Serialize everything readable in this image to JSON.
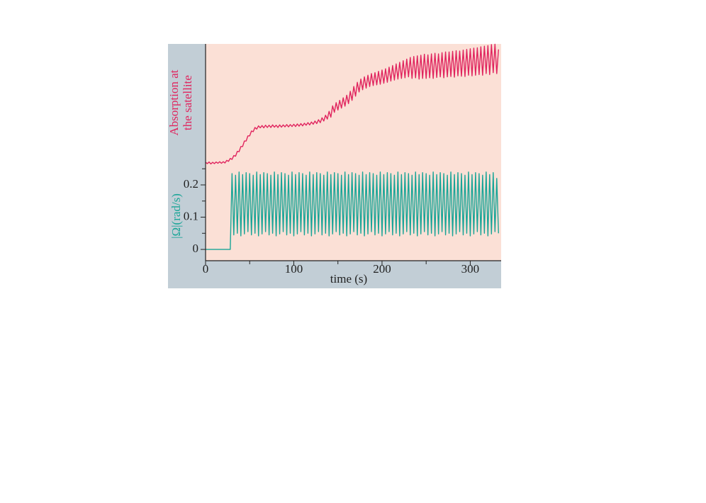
{
  "chart_data": {
    "type": "line",
    "x": [
      0,
      2,
      4,
      6,
      8,
      10,
      12,
      14,
      16,
      18,
      20,
      22,
      24,
      26,
      28,
      30,
      32,
      34,
      36,
      38,
      40,
      42,
      44,
      46,
      48,
      50,
      52,
      54,
      56,
      58,
      60,
      62,
      64,
      66,
      68,
      70,
      72,
      74,
      76,
      78,
      80,
      82,
      84,
      86,
      88,
      90,
      92,
      94,
      96,
      98,
      100,
      102,
      104,
      106,
      108,
      110,
      112,
      114,
      116,
      118,
      120,
      122,
      124,
      126,
      128,
      130,
      132,
      134,
      136,
      138,
      140,
      142,
      144,
      146,
      148,
      150,
      152,
      154,
      156,
      158,
      160,
      162,
      164,
      166,
      168,
      170,
      172,
      174,
      176,
      178,
      180,
      182,
      184,
      186,
      188,
      190,
      192,
      194,
      196,
      198,
      200,
      202,
      204,
      206,
      208,
      210,
      212,
      214,
      216,
      218,
      220,
      222,
      224,
      226,
      228,
      230,
      232,
      234,
      236,
      238,
      240,
      242,
      244,
      246,
      248,
      250,
      252,
      254,
      256,
      258,
      260,
      262,
      264,
      266,
      268,
      270,
      272,
      274,
      276,
      278,
      280,
      282,
      284,
      286,
      288,
      290,
      292,
      294,
      296,
      298,
      300,
      302,
      304,
      306,
      308,
      310,
      312,
      314,
      316,
      318,
      320,
      322,
      324,
      326,
      328,
      330,
      332
    ],
    "series": [
      {
        "label_lines": [
          "Absorption at",
          "the satellite"
        ],
        "color": "#e0245e",
        "values": [
          0.27,
          0.266,
          0.271,
          0.265,
          0.27,
          0.266,
          0.271,
          0.267,
          0.272,
          0.267,
          0.272,
          0.268,
          0.276,
          0.273,
          0.282,
          0.279,
          0.291,
          0.289,
          0.304,
          0.303,
          0.319,
          0.319,
          0.336,
          0.336,
          0.352,
          0.352,
          0.367,
          0.365,
          0.378,
          0.373,
          0.383,
          0.377,
          0.384,
          0.377,
          0.385,
          0.378,
          0.385,
          0.378,
          0.386,
          0.379,
          0.385,
          0.378,
          0.386,
          0.379,
          0.386,
          0.38,
          0.387,
          0.38,
          0.387,
          0.381,
          0.388,
          0.381,
          0.389,
          0.382,
          0.39,
          0.383,
          0.391,
          0.385,
          0.393,
          0.386,
          0.395,
          0.388,
          0.398,
          0.39,
          0.402,
          0.393,
          0.408,
          0.398,
          0.416,
          0.404,
          0.428,
          0.41,
          0.445,
          0.425,
          0.455,
          0.432,
          0.462,
          0.438,
          0.47,
          0.444,
          0.478,
          0.452,
          0.49,
          0.462,
          0.505,
          0.475,
          0.518,
          0.488,
          0.528,
          0.495,
          0.535,
          0.5,
          0.54,
          0.505,
          0.545,
          0.508,
          0.548,
          0.51,
          0.552,
          0.512,
          0.556,
          0.515,
          0.56,
          0.518,
          0.565,
          0.522,
          0.57,
          0.525,
          0.575,
          0.528,
          0.58,
          0.53,
          0.585,
          0.532,
          0.59,
          0.535,
          0.595,
          0.53,
          0.598,
          0.532,
          0.6,
          0.528,
          0.602,
          0.53,
          0.605,
          0.53,
          0.603,
          0.532,
          0.606,
          0.53,
          0.608,
          0.533,
          0.606,
          0.535,
          0.61,
          0.532,
          0.612,
          0.535,
          0.612,
          0.536,
          0.614,
          0.534,
          0.616,
          0.538,
          0.615,
          0.537,
          0.618,
          0.536,
          0.62,
          0.54,
          0.622,
          0.538,
          0.624,
          0.54,
          0.625,
          0.542,
          0.628,
          0.54,
          0.63,
          0.545,
          0.632,
          0.542,
          0.635,
          0.548,
          0.636,
          0.545,
          0.62
        ]
      },
      {
        "color": "#1aa597",
        "values": [
          0,
          0,
          0,
          0,
          0,
          0,
          0,
          0,
          0,
          0,
          0,
          0,
          0,
          0,
          0,
          0.235,
          0.045,
          0.23,
          0.05,
          0.24,
          0.042,
          0.232,
          0.048,
          0.238,
          0.055,
          0.235,
          0.045,
          0.23,
          0.05,
          0.24,
          0.042,
          0.232,
          0.048,
          0.238,
          0.055,
          0.235,
          0.045,
          0.23,
          0.05,
          0.24,
          0.042,
          0.232,
          0.048,
          0.238,
          0.055,
          0.235,
          0.045,
          0.23,
          0.05,
          0.24,
          0.042,
          0.232,
          0.048,
          0.238,
          0.055,
          0.235,
          0.045,
          0.23,
          0.05,
          0.24,
          0.042,
          0.232,
          0.048,
          0.238,
          0.055,
          0.235,
          0.045,
          0.23,
          0.05,
          0.24,
          0.042,
          0.232,
          0.048,
          0.238,
          0.055,
          0.235,
          0.045,
          0.23,
          0.05,
          0.24,
          0.042,
          0.232,
          0.048,
          0.238,
          0.055,
          0.235,
          0.045,
          0.23,
          0.05,
          0.24,
          0.042,
          0.232,
          0.048,
          0.238,
          0.055,
          0.235,
          0.045,
          0.23,
          0.05,
          0.24,
          0.042,
          0.232,
          0.048,
          0.238,
          0.055,
          0.235,
          0.045,
          0.23,
          0.05,
          0.24,
          0.042,
          0.232,
          0.048,
          0.238,
          0.055,
          0.235,
          0.045,
          0.23,
          0.05,
          0.24,
          0.042,
          0.232,
          0.048,
          0.238,
          0.055,
          0.235,
          0.045,
          0.23,
          0.05,
          0.24,
          0.042,
          0.232,
          0.048,
          0.238,
          0.055,
          0.235,
          0.045,
          0.23,
          0.05,
          0.24,
          0.042,
          0.232,
          0.048,
          0.238,
          0.055,
          0.235,
          0.045,
          0.23,
          0.05,
          0.24,
          0.042,
          0.232,
          0.048,
          0.238,
          0.055,
          0.235,
          0.045,
          0.23,
          0.05,
          0.24,
          0.042,
          0.232,
          0.048,
          0.238,
          0.055,
          0.22,
          0.05
        ]
      }
    ],
    "xlabel": "time (s)",
    "ylabel": "|Ω|(rad/s)",
    "xlim": [
      0,
      335
    ],
    "xticks": [
      0,
      100,
      200,
      300
    ],
    "xminorticks": [
      50,
      150,
      250
    ],
    "ylim": [
      -0.035,
      0.637
    ],
    "yticks": [
      0,
      0.1,
      0.2
    ],
    "yminorticks": [
      0.05,
      0.15,
      0.25
    ]
  }
}
